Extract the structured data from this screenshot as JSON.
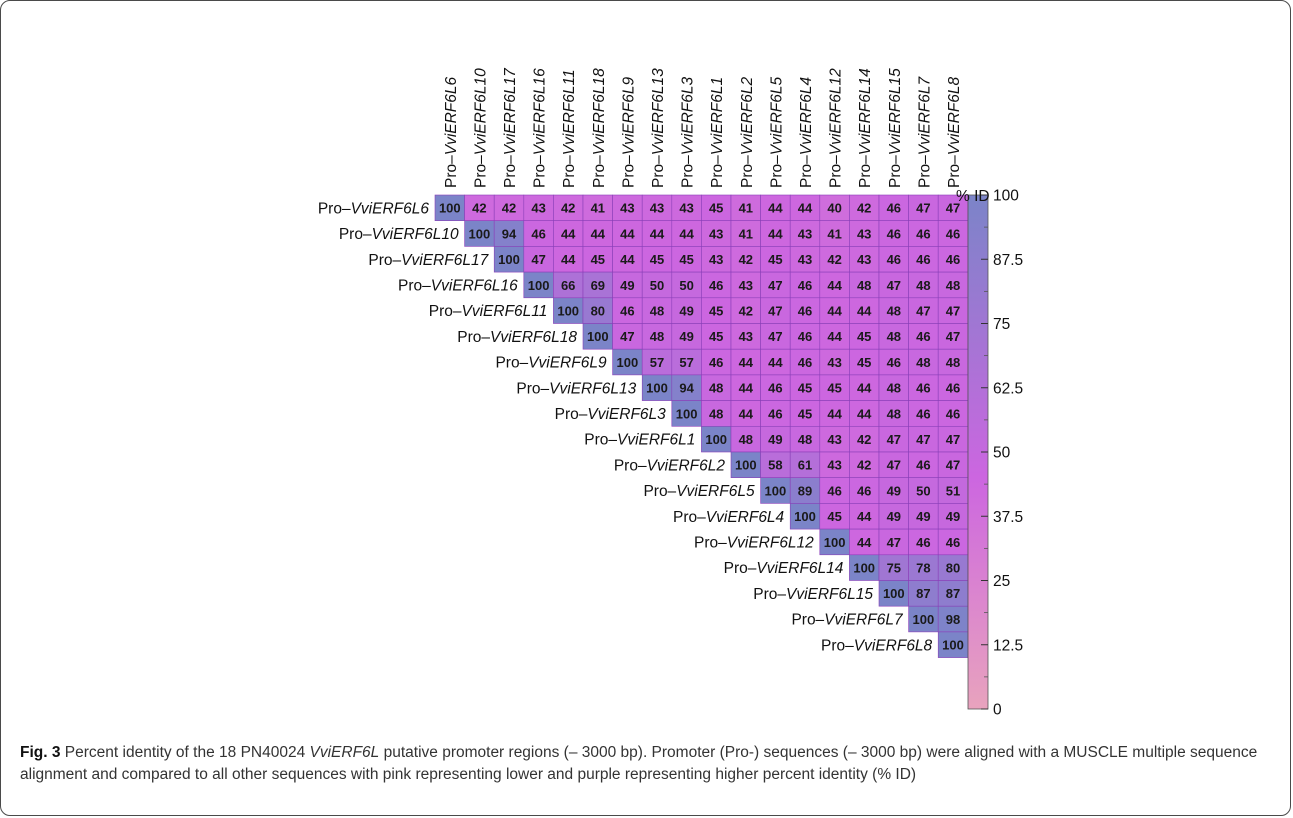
{
  "chart_data": {
    "type": "heatmap",
    "labels": [
      "Pro–VviERF6L6",
      "Pro–VviERF6L10",
      "Pro–VviERF6L17",
      "Pro–VviERF6L16",
      "Pro–VviERF6L11",
      "Pro–VviERF6L18",
      "Pro–VviERF6L9",
      "Pro–VviERF6L13",
      "Pro–VviERF6L3",
      "Pro–VviERF6L1",
      "Pro–VviERF6L2",
      "Pro–VviERF6L5",
      "Pro–VviERF6L4",
      "Pro–VviERF6L12",
      "Pro–VviERF6L14",
      "Pro–VviERF6L15",
      "Pro–VviERF6L7",
      "Pro–VviERF6L8"
    ],
    "matrix_upper": [
      [
        100,
        42,
        42,
        43,
        42,
        41,
        43,
        43,
        43,
        45,
        41,
        44,
        44,
        40,
        42,
        46,
        47,
        47
      ],
      [
        100,
        94,
        46,
        44,
        44,
        44,
        44,
        44,
        43,
        41,
        44,
        43,
        41,
        43,
        46,
        46,
        46
      ],
      [
        100,
        47,
        44,
        45,
        44,
        45,
        45,
        43,
        42,
        45,
        43,
        42,
        43,
        46,
        46,
        46
      ],
      [
        100,
        66,
        69,
        49,
        50,
        50,
        46,
        43,
        47,
        46,
        44,
        48,
        47,
        48,
        48
      ],
      [
        100,
        80,
        46,
        48,
        49,
        45,
        42,
        47,
        46,
        44,
        44,
        48,
        47,
        47
      ],
      [
        100,
        47,
        48,
        49,
        45,
        43,
        47,
        46,
        44,
        45,
        48,
        46,
        47
      ],
      [
        100,
        57,
        57,
        46,
        44,
        44,
        46,
        43,
        45,
        46,
        48,
        48
      ],
      [
        100,
        94,
        48,
        44,
        46,
        45,
        45,
        44,
        48,
        46,
        46
      ],
      [
        100,
        48,
        44,
        46,
        45,
        44,
        44,
        48,
        46,
        46
      ],
      [
        100,
        48,
        49,
        48,
        43,
        42,
        47,
        47,
        47
      ],
      [
        100,
        58,
        61,
        43,
        42,
        47,
        46,
        47
      ],
      [
        100,
        89,
        46,
        46,
        49,
        50,
        51
      ],
      [
        100,
        45,
        44,
        49,
        49,
        49
      ],
      [
        100,
        44,
        47,
        46,
        46
      ],
      [
        100,
        75,
        78,
        80
      ],
      [
        100,
        87,
        87
      ],
      [
        100,
        98
      ],
      [
        100
      ]
    ],
    "colorbar": {
      "title": "% ID",
      "ticks": [
        "100",
        "87.5",
        "75",
        "62.5",
        "50",
        "37.5",
        "25",
        "12.5",
        "0"
      ],
      "range": [
        0,
        100
      ],
      "low_color": "#e8a3bd",
      "mid_color": "#cc66e0",
      "high_color": "#7b84c8"
    }
  },
  "caption": {
    "fig_label": "Fig. 3",
    "text_1": " Percent identity of the 18 PN40024 ",
    "italic_1": "VviERF6L",
    "text_2": " putative promoter regions (– 3000 bp). Promoter (Pro-) sequences (– 3000 bp) were aligned with a MUSCLE multiple sequence alignment and compared to all other sequences with pink representing lower and purple representing higher percent identity (% ID)"
  }
}
